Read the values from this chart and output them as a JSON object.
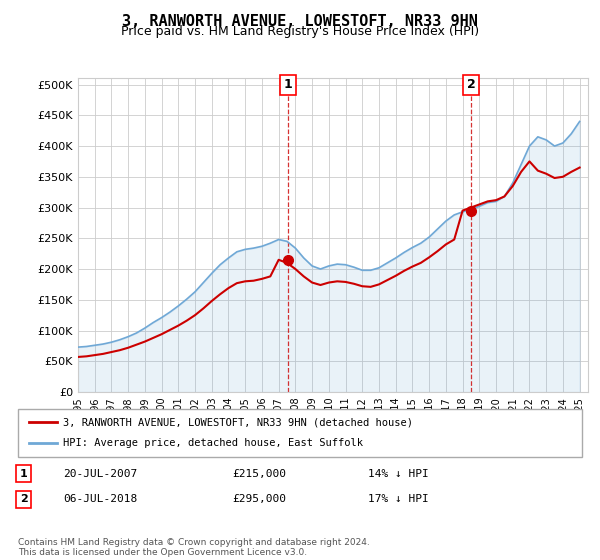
{
  "title": "3, RANWORTH AVENUE, LOWESTOFT, NR33 9HN",
  "subtitle": "Price paid vs. HM Land Registry's House Price Index (HPI)",
  "hpi_label": "HPI: Average price, detached house, East Suffolk",
  "price_label": "3, RANWORTH AVENUE, LOWESTOFT, NR33 9HN (detached house)",
  "sale1_date": "20-JUL-2007",
  "sale1_price": 215000,
  "sale1_pct": "14% ↓ HPI",
  "sale2_date": "06-JUL-2018",
  "sale2_price": 295000,
  "sale2_pct": "17% ↓ HPI",
  "sale1_year": 2007.54,
  "sale2_year": 2018.51,
  "ylim": [
    0,
    510000
  ],
  "xlim_start": 1995,
  "xlim_end": 2025.5,
  "hpi_color": "#6fa8d6",
  "price_color": "#cc0000",
  "marker_color_sale1": "#cc3300",
  "marker_color_sale2": "#aa0000",
  "grid_color": "#cccccc",
  "bg_color": "#ffffff",
  "footnote": "Contains HM Land Registry data © Crown copyright and database right 2024.\nThis data is licensed under the Open Government Licence v3.0.",
  "hpi_data_x": [
    1995,
    1995.5,
    1996,
    1996.5,
    1997,
    1997.5,
    1998,
    1998.5,
    1999,
    1999.5,
    2000,
    2000.5,
    2001,
    2001.5,
    2002,
    2002.5,
    2003,
    2003.5,
    2004,
    2004.5,
    2005,
    2005.5,
    2006,
    2006.5,
    2007,
    2007.5,
    2008,
    2008.5,
    2009,
    2009.5,
    2010,
    2010.5,
    2011,
    2011.5,
    2012,
    2012.5,
    2013,
    2013.5,
    2014,
    2014.5,
    2015,
    2015.5,
    2016,
    2016.5,
    2017,
    2017.5,
    2018,
    2018.5,
    2019,
    2019.5,
    2020,
    2020.5,
    2021,
    2021.5,
    2022,
    2022.5,
    2023,
    2023.5,
    2024,
    2024.5,
    2025
  ],
  "hpi_data_y": [
    73000,
    74000,
    76000,
    78000,
    81000,
    85000,
    90000,
    96000,
    104000,
    113000,
    121000,
    130000,
    140000,
    151000,
    163000,
    178000,
    193000,
    207000,
    218000,
    228000,
    232000,
    234000,
    237000,
    242000,
    248000,
    245000,
    234000,
    218000,
    205000,
    200000,
    205000,
    208000,
    207000,
    203000,
    198000,
    198000,
    202000,
    210000,
    218000,
    227000,
    235000,
    242000,
    252000,
    265000,
    278000,
    288000,
    293000,
    297000,
    302000,
    308000,
    310000,
    318000,
    340000,
    370000,
    400000,
    415000,
    410000,
    400000,
    405000,
    420000,
    440000
  ],
  "price_data_x": [
    1995,
    1995.5,
    1996,
    1996.5,
    1997,
    1997.5,
    1998,
    1998.5,
    1999,
    1999.5,
    2000,
    2000.5,
    2001,
    2001.5,
    2002,
    2002.5,
    2003,
    2003.5,
    2004,
    2004.5,
    2005,
    2005.5,
    2006,
    2006.5,
    2007,
    2007.5,
    2008,
    2008.5,
    2009,
    2009.5,
    2010,
    2010.5,
    2011,
    2011.5,
    2012,
    2012.5,
    2013,
    2013.5,
    2014,
    2014.5,
    2015,
    2015.5,
    2016,
    2016.5,
    2017,
    2017.5,
    2018,
    2018.5,
    2019,
    2019.5,
    2020,
    2020.5,
    2021,
    2021.5,
    2022,
    2022.5,
    2023,
    2023.5,
    2024,
    2024.5,
    2025
  ],
  "price_data_y": [
    57000,
    58000,
    60000,
    62000,
    65000,
    68000,
    72000,
    77000,
    82000,
    88000,
    94000,
    101000,
    108000,
    116000,
    125000,
    136000,
    148000,
    159000,
    169000,
    177000,
    180000,
    181000,
    184000,
    188000,
    215000,
    210000,
    200000,
    188000,
    178000,
    174000,
    178000,
    180000,
    179000,
    176000,
    172000,
    171000,
    175000,
    182000,
    189000,
    197000,
    204000,
    210000,
    219000,
    229000,
    240000,
    248000,
    295000,
    300000,
    305000,
    310000,
    312000,
    318000,
    335000,
    358000,
    375000,
    360000,
    355000,
    348000,
    350000,
    358000,
    365000
  ]
}
